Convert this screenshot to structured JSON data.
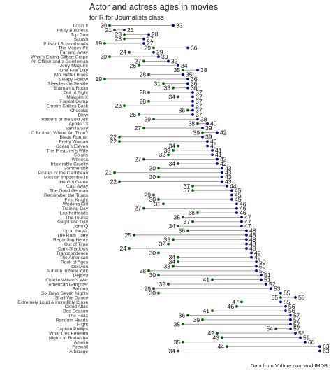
{
  "chart_data": {
    "type": "dumbbell",
    "title": "Actor and actress ages in movies",
    "subtitle": "for R for Journalists class",
    "caption": "Data from Vulture.com and IMDB",
    "colors": {
      "actress": "#006400",
      "actor": "#00008B",
      "segment": "#999999"
    },
    "grid": false,
    "series": [
      {
        "key": "actress",
        "point_color": "#006400"
      },
      {
        "key": "actor",
        "point_color": "#00008B"
      }
    ],
    "rows": [
      {
        "movie": "Losin It",
        "actress": 20,
        "actor": 33
      },
      {
        "movie": "Risky Business",
        "actress": 21,
        "actor": 23
      },
      {
        "movie": "Top Gun",
        "actress": 23,
        "actor": 28
      },
      {
        "movie": "Splash",
        "actress": 23,
        "actor": 27
      },
      {
        "movie": "Edward Scissorhands",
        "actress": 19,
        "actor": 27
      },
      {
        "movie": "The Money Pit",
        "actress": 29,
        "actor": 36
      },
      {
        "movie": "Far and Away",
        "actress": 24,
        "actor": 29
      },
      {
        "movie": "What's Eating Gilbert Grape",
        "actress": 20,
        "actor": 30
      },
      {
        "movie": "An Officer and a Gentleman",
        "actress": 27,
        "actor": 32
      },
      {
        "movie": "Jerry Maguire",
        "actress": 26,
        "actor": 34
      },
      {
        "movie": "One Fine Day",
        "actress": 35,
        "actor": 38
      },
      {
        "movie": "Mo' Better Blues",
        "actress": 28,
        "actor": 35
      },
      {
        "movie": "Sleepy Hollow",
        "actress": 19,
        "actor": 36
      },
      {
        "movie": "Sleepless in Seattle",
        "actress": 31,
        "actor": 36
      },
      {
        "movie": "Batman & Robin",
        "actress": 33,
        "actor": 36
      },
      {
        "movie": "Out of Sight",
        "actress": 28,
        "actor": 37
      },
      {
        "movie": "Malcolm X",
        "actress": 34,
        "actor": 37
      },
      {
        "movie": "Forrest Gump",
        "actress": 28,
        "actor": 37
      },
      {
        "movie": "Empire Strikes Back",
        "actress": 23,
        "actor": 37
      },
      {
        "movie": "Chocolat",
        "actress": 36,
        "actor": 37
      },
      {
        "movie": "Blow",
        "actress": 26,
        "actor": 37
      },
      {
        "movie": "Raiders of the Lost Ark",
        "actress": 29,
        "actor": 38
      },
      {
        "movie": "Apollo 13",
        "actress": 38,
        "actor": 40
      },
      {
        "movie": "Vanilla Sky",
        "actress": 27,
        "actor": 39
      },
      {
        "movie": "O Brother, Where Art Thou?",
        "actress": 39,
        "actor": 42
      },
      {
        "movie": "Blade Runner",
        "actress": 22,
        "actor": 39
      },
      {
        "movie": "Pretty Woman",
        "actress": 22,
        "actor": 40
      },
      {
        "movie": "Ocean's Eleven",
        "actress": 34,
        "actor": 40
      },
      {
        "movie": "The Preacher's Wife",
        "actress": 33,
        "actor": 41
      },
      {
        "movie": "Solaris",
        "actress": 32,
        "actor": 41
      },
      {
        "movie": "Witness",
        "actress": 27,
        "actor": 42
      },
      {
        "movie": "Intolerable Cruelty",
        "actress": 34,
        "actor": 42
      },
      {
        "movie": "Sommersby",
        "actress": 30,
        "actor": 43
      },
      {
        "movie": "Pirates of the Caribbean",
        "actress": 21,
        "actor": 43
      },
      {
        "movie": "Mission Impossible III",
        "actress": 30,
        "actor": 43
      },
      {
        "movie": "He Got Game",
        "actress": 22,
        "actor": 43
      },
      {
        "movie": "Cast Away",
        "actress": 37,
        "actor": 44
      },
      {
        "movie": "The Good German",
        "actress": 37,
        "actor": 45
      },
      {
        "movie": "Remember the Titans",
        "actress": 29,
        "actor": 45
      },
      {
        "movie": "First Knight",
        "actress": 30,
        "actor": 45
      },
      {
        "movie": "Working Girl",
        "actress": 31,
        "actor": 46
      },
      {
        "movie": "Training Day",
        "actress": 27,
        "actor": 46
      },
      {
        "movie": "Leatherheads",
        "actress": 38,
        "actor": 46
      },
      {
        "movie": "The Tourist",
        "actress": 35,
        "actor": 47
      },
      {
        "movie": "Knight and Day",
        "actress": 37,
        "actor": 47
      },
      {
        "movie": "John Q",
        "actress": 34,
        "actor": 47
      },
      {
        "movie": "Up in the Air",
        "actress": 36,
        "actor": 48
      },
      {
        "movie": "The Rum Diary",
        "actress": 25,
        "actor": 48
      },
      {
        "movie": "Regarding Henry",
        "actress": 33,
        "actor": 48
      },
      {
        "movie": "Out of Time",
        "actress": 32,
        "actor": 48
      },
      {
        "movie": "Dark Shadows",
        "actress": 24,
        "actor": 48
      },
      {
        "movie": "Transcendence",
        "actress": 30,
        "actor": 49
      },
      {
        "movie": "The American",
        "actress": 34,
        "actor": 49
      },
      {
        "movie": "Rock of Ages",
        "actress": 34,
        "actor": 50
      },
      {
        "movie": "Oblivion",
        "actress": 33,
        "actor": 50
      },
      {
        "movie": "Autumn in New York",
        "actress": 28,
        "actor": 50
      },
      {
        "movie": "DejaVu",
        "actress": 30,
        "actor": 51
      },
      {
        "movie": "Charlie Wilson's War",
        "actress": 41,
        "actor": 51
      },
      {
        "movie": "American Gangster",
        "actress": 32,
        "actor": 52
      },
      {
        "movie": "Sabrina",
        "actress": 29,
        "actor": 53
      },
      {
        "movie": "Six Days Seven Nights",
        "actress": 30,
        "actor": 55
      },
      {
        "movie": "Shall We Dance",
        "actress": 55,
        "actor": 58
      },
      {
        "movie": "Extremely Loud & Incredibly Close",
        "actress": 47,
        "actor": 55
      },
      {
        "movie": "Cloud Atlas",
        "actress": 46,
        "actor": 56
      },
      {
        "movie": "Bee Season",
        "actress": 41,
        "actor": 56
      },
      {
        "movie": "The Hoax",
        "actress": 36,
        "actor": 57
      },
      {
        "movie": "Random Hearts",
        "actress": 39,
        "actor": 57
      },
      {
        "movie": "Flight",
        "actress": 35,
        "actor": 57
      },
      {
        "movie": "Captain Phillips",
        "actress": 54,
        "actor": 57
      },
      {
        "movie": "What Lies Beneath",
        "actress": 42,
        "actor": 58
      },
      {
        "movie": "Nights in Rodanthe",
        "actress": 43,
        "actor": 59
      },
      {
        "movie": "Amelia",
        "actress": 35,
        "actor": 60
      },
      {
        "movie": "Firewall",
        "actress": 44,
        "actor": 63
      },
      {
        "movie": "Arbitrage",
        "actress": 34,
        "actor": 63
      }
    ]
  }
}
